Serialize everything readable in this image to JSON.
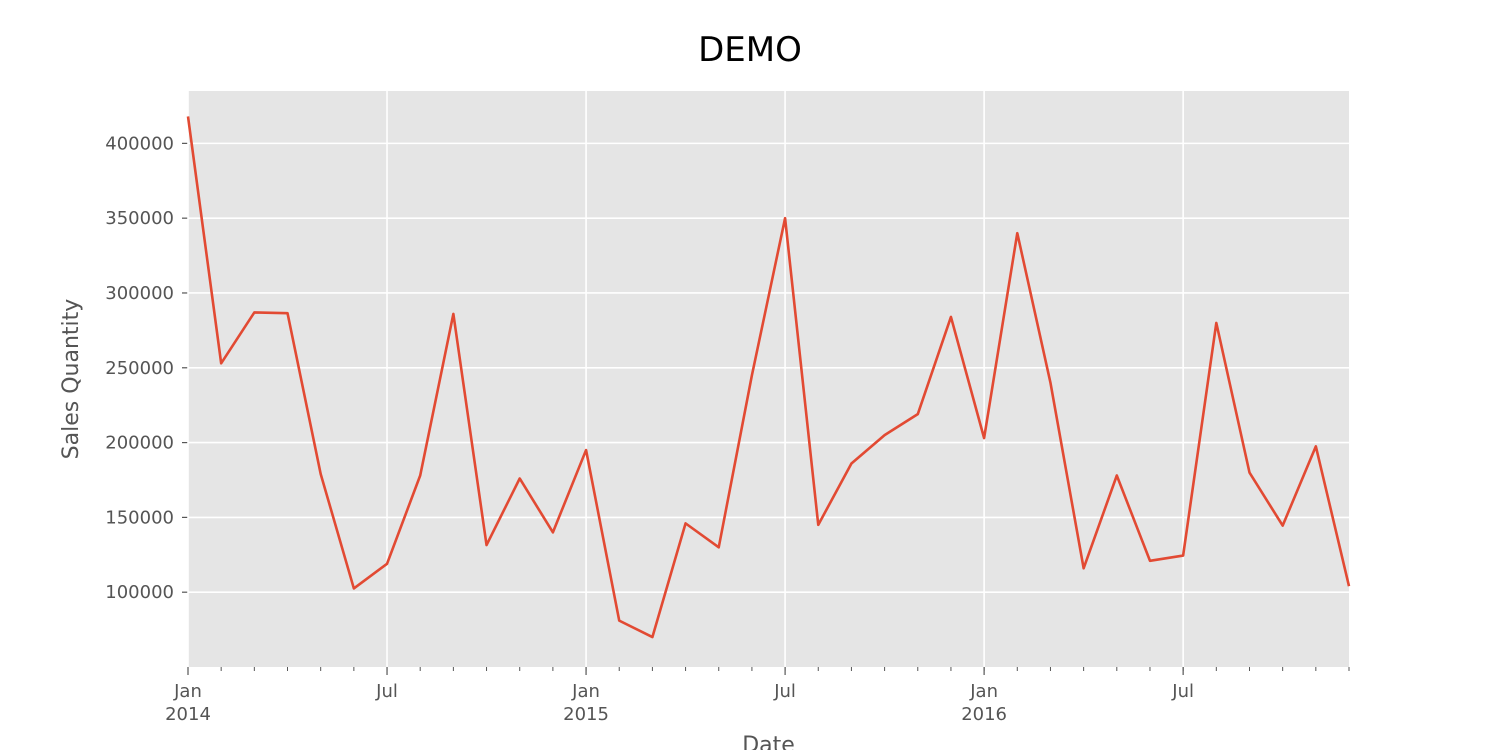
{
  "chart_data": {
    "type": "line",
    "title": "DEMO",
    "xlabel": "Date",
    "ylabel": "Sales Quantity",
    "grid": true,
    "ylim": [
      50000,
      435000
    ],
    "xlim": [
      "2014-01",
      "2016-12"
    ],
    "x_major_ticks": [
      {
        "date": "2014-01",
        "label": "Jan",
        "sublabel": "2014"
      },
      {
        "date": "2014-07",
        "label": "Jul",
        "sublabel": ""
      },
      {
        "date": "2015-01",
        "label": "Jan",
        "sublabel": "2015"
      },
      {
        "date": "2015-07",
        "label": "Jul",
        "sublabel": ""
      },
      {
        "date": "2016-01",
        "label": "Jan",
        "sublabel": "2016"
      },
      {
        "date": "2016-07",
        "label": "Jul",
        "sublabel": ""
      }
    ],
    "y_ticks": [
      100000,
      150000,
      200000,
      250000,
      300000,
      350000,
      400000
    ],
    "colors": {
      "line": "#E24A33",
      "plot_bg": "#E5E5E5",
      "grid": "#FFFFFF",
      "text": "#555555"
    },
    "series": [
      {
        "x": [
          "2014-01",
          "2014-02",
          "2014-03",
          "2014-04",
          "2014-05",
          "2014-06",
          "2014-07",
          "2014-08",
          "2014-09",
          "2014-10",
          "2014-11",
          "2014-12",
          "2015-01",
          "2015-02",
          "2015-03",
          "2015-04",
          "2015-05",
          "2015-06",
          "2015-07",
          "2015-08",
          "2015-09",
          "2015-10",
          "2015-11",
          "2015-12",
          "2016-01",
          "2016-02",
          "2016-03",
          "2016-04",
          "2016-05",
          "2016-06",
          "2016-07",
          "2016-08",
          "2016-09",
          "2016-10",
          "2016-11",
          "2016-12"
        ],
        "values": [
          418000,
          253000,
          287000,
          286500,
          179000,
          102500,
          119000,
          178000,
          286000,
          131500,
          176000,
          140000,
          195000,
          81000,
          70000,
          146000,
          130000,
          245000,
          350000,
          145000,
          186000,
          205000,
          219000,
          284000,
          203000,
          340000,
          240000,
          116000,
          178000,
          121000,
          124500,
          280000,
          180000,
          144500,
          197500,
          104000
        ]
      }
    ]
  }
}
